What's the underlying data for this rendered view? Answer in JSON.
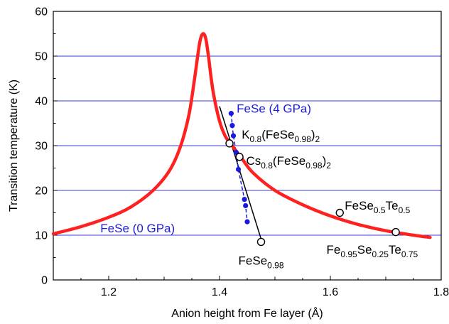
{
  "chart_data": {
    "type": "scatter",
    "xlabel": "Anion height from Fe layer (Å)",
    "ylabel": "Transition temperature (K)",
    "xlim": [
      1.1,
      1.8
    ],
    "ylim": [
      0,
      60
    ],
    "xticks": [
      1.2,
      1.4,
      1.6,
      1.8
    ],
    "yticks": [
      0,
      10,
      20,
      30,
      40,
      50,
      60
    ],
    "grid": "horizontal",
    "colors": {
      "curve": "#ff2020",
      "grid": "#3a3ad6",
      "blue": "#1a1adf",
      "black": "#000000"
    },
    "series": [
      {
        "style": "curve",
        "points": [
          [
            1.1,
            10.3
          ],
          [
            1.15,
            11.9
          ],
          [
            1.2,
            14.0
          ],
          [
            1.24,
            16.3
          ],
          [
            1.28,
            20.0
          ],
          [
            1.31,
            24.5
          ],
          [
            1.33,
            30.0
          ],
          [
            1.345,
            37.0
          ],
          [
            1.355,
            45.0
          ],
          [
            1.36,
            49.5
          ],
          [
            1.365,
            53.5
          ],
          [
            1.37,
            55.0
          ],
          [
            1.375,
            54.0
          ],
          [
            1.38,
            50.0
          ],
          [
            1.385,
            45.0
          ],
          [
            1.39,
            41.0
          ],
          [
            1.4,
            35.5
          ],
          [
            1.41,
            32.2
          ],
          [
            1.42,
            30.5
          ],
          [
            1.43,
            28.8
          ],
          [
            1.44,
            27.2
          ],
          [
            1.46,
            24.0
          ],
          [
            1.5,
            20.0
          ],
          [
            1.55,
            16.8
          ],
          [
            1.6,
            14.3
          ],
          [
            1.65,
            12.4
          ],
          [
            1.7,
            11.0
          ],
          [
            1.75,
            10.0
          ],
          [
            1.78,
            9.5
          ]
        ]
      },
      {
        "style": "blue-points",
        "points": [
          [
            1.421,
            37.2
          ],
          [
            1.423,
            34.5
          ],
          [
            1.425,
            32.2
          ],
          [
            1.43,
            28.5
          ],
          [
            1.434,
            24.7
          ],
          [
            1.445,
            18.0
          ],
          [
            1.447,
            16.6
          ],
          [
            1.45,
            13.0
          ]
        ]
      },
      {
        "style": "open-circles",
        "points": [
          [
            1.418,
            30.5
          ],
          [
            1.436,
            27.5
          ],
          [
            1.475,
            8.5
          ],
          [
            1.617,
            15.0
          ],
          [
            1.718,
            10.7
          ]
        ]
      }
    ],
    "lines": [
      {
        "style": "black-solid",
        "points": [
          [
            1.4,
            38.8
          ],
          [
            1.478,
            8.0
          ]
        ]
      },
      {
        "style": "blue-dashed",
        "points": [
          [
            1.421,
            37.2
          ],
          [
            1.423,
            34.5
          ],
          [
            1.425,
            32.2
          ],
          [
            1.43,
            28.5
          ],
          [
            1.434,
            24.7
          ],
          [
            1.445,
            18.0
          ],
          [
            1.447,
            16.6
          ],
          [
            1.45,
            13.0
          ]
        ]
      }
    ],
    "annotations": [
      {
        "id": "fese4",
        "color": "blue",
        "x": 1.431,
        "y": 37.4,
        "parts": [
          [
            "FeSe (4 GPa)",
            ""
          ]
        ]
      },
      {
        "id": "fese0",
        "color": "blue",
        "x": 1.185,
        "y": 10.6,
        "parts": [
          [
            "FeSe (0 GPa)",
            ""
          ]
        ]
      },
      {
        "id": "k08",
        "color": "black",
        "x": 1.44,
        "y": 31.6,
        "parts": [
          [
            "K",
            ""
          ],
          [
            "0.8",
            "sub"
          ],
          [
            "(FeSe",
            ""
          ],
          [
            "0.98",
            "sub"
          ],
          [
            ")",
            ""
          ],
          [
            "2",
            "sub"
          ]
        ]
      },
      {
        "id": "cs08",
        "color": "black",
        "x": 1.448,
        "y": 25.7,
        "parts": [
          [
            "Cs",
            ""
          ],
          [
            "0.8",
            "sub"
          ],
          [
            "(FeSe",
            ""
          ],
          [
            "0.98",
            "sub"
          ],
          [
            ")",
            ""
          ],
          [
            "2",
            "sub"
          ]
        ]
      },
      {
        "id": "fese098",
        "color": "black",
        "x": 1.434,
        "y": 3.4,
        "parts": [
          [
            "FeSe",
            ""
          ],
          [
            "0.98",
            "sub"
          ]
        ]
      },
      {
        "id": "fesete05",
        "color": "black",
        "x": 1.626,
        "y": 15.7,
        "parts": [
          [
            "FeSe",
            ""
          ],
          [
            "0.5",
            "sub"
          ],
          [
            "Te",
            ""
          ],
          [
            "0.5",
            "sub"
          ]
        ]
      },
      {
        "id": "fe095",
        "color": "black",
        "x": 1.593,
        "y": 5.9,
        "parts": [
          [
            "Fe",
            ""
          ],
          [
            "0.95",
            "sub"
          ],
          [
            "Se",
            ""
          ],
          [
            "0.25",
            "sub"
          ],
          [
            "Te",
            ""
          ],
          [
            "0.75",
            "sub"
          ]
        ]
      }
    ]
  }
}
